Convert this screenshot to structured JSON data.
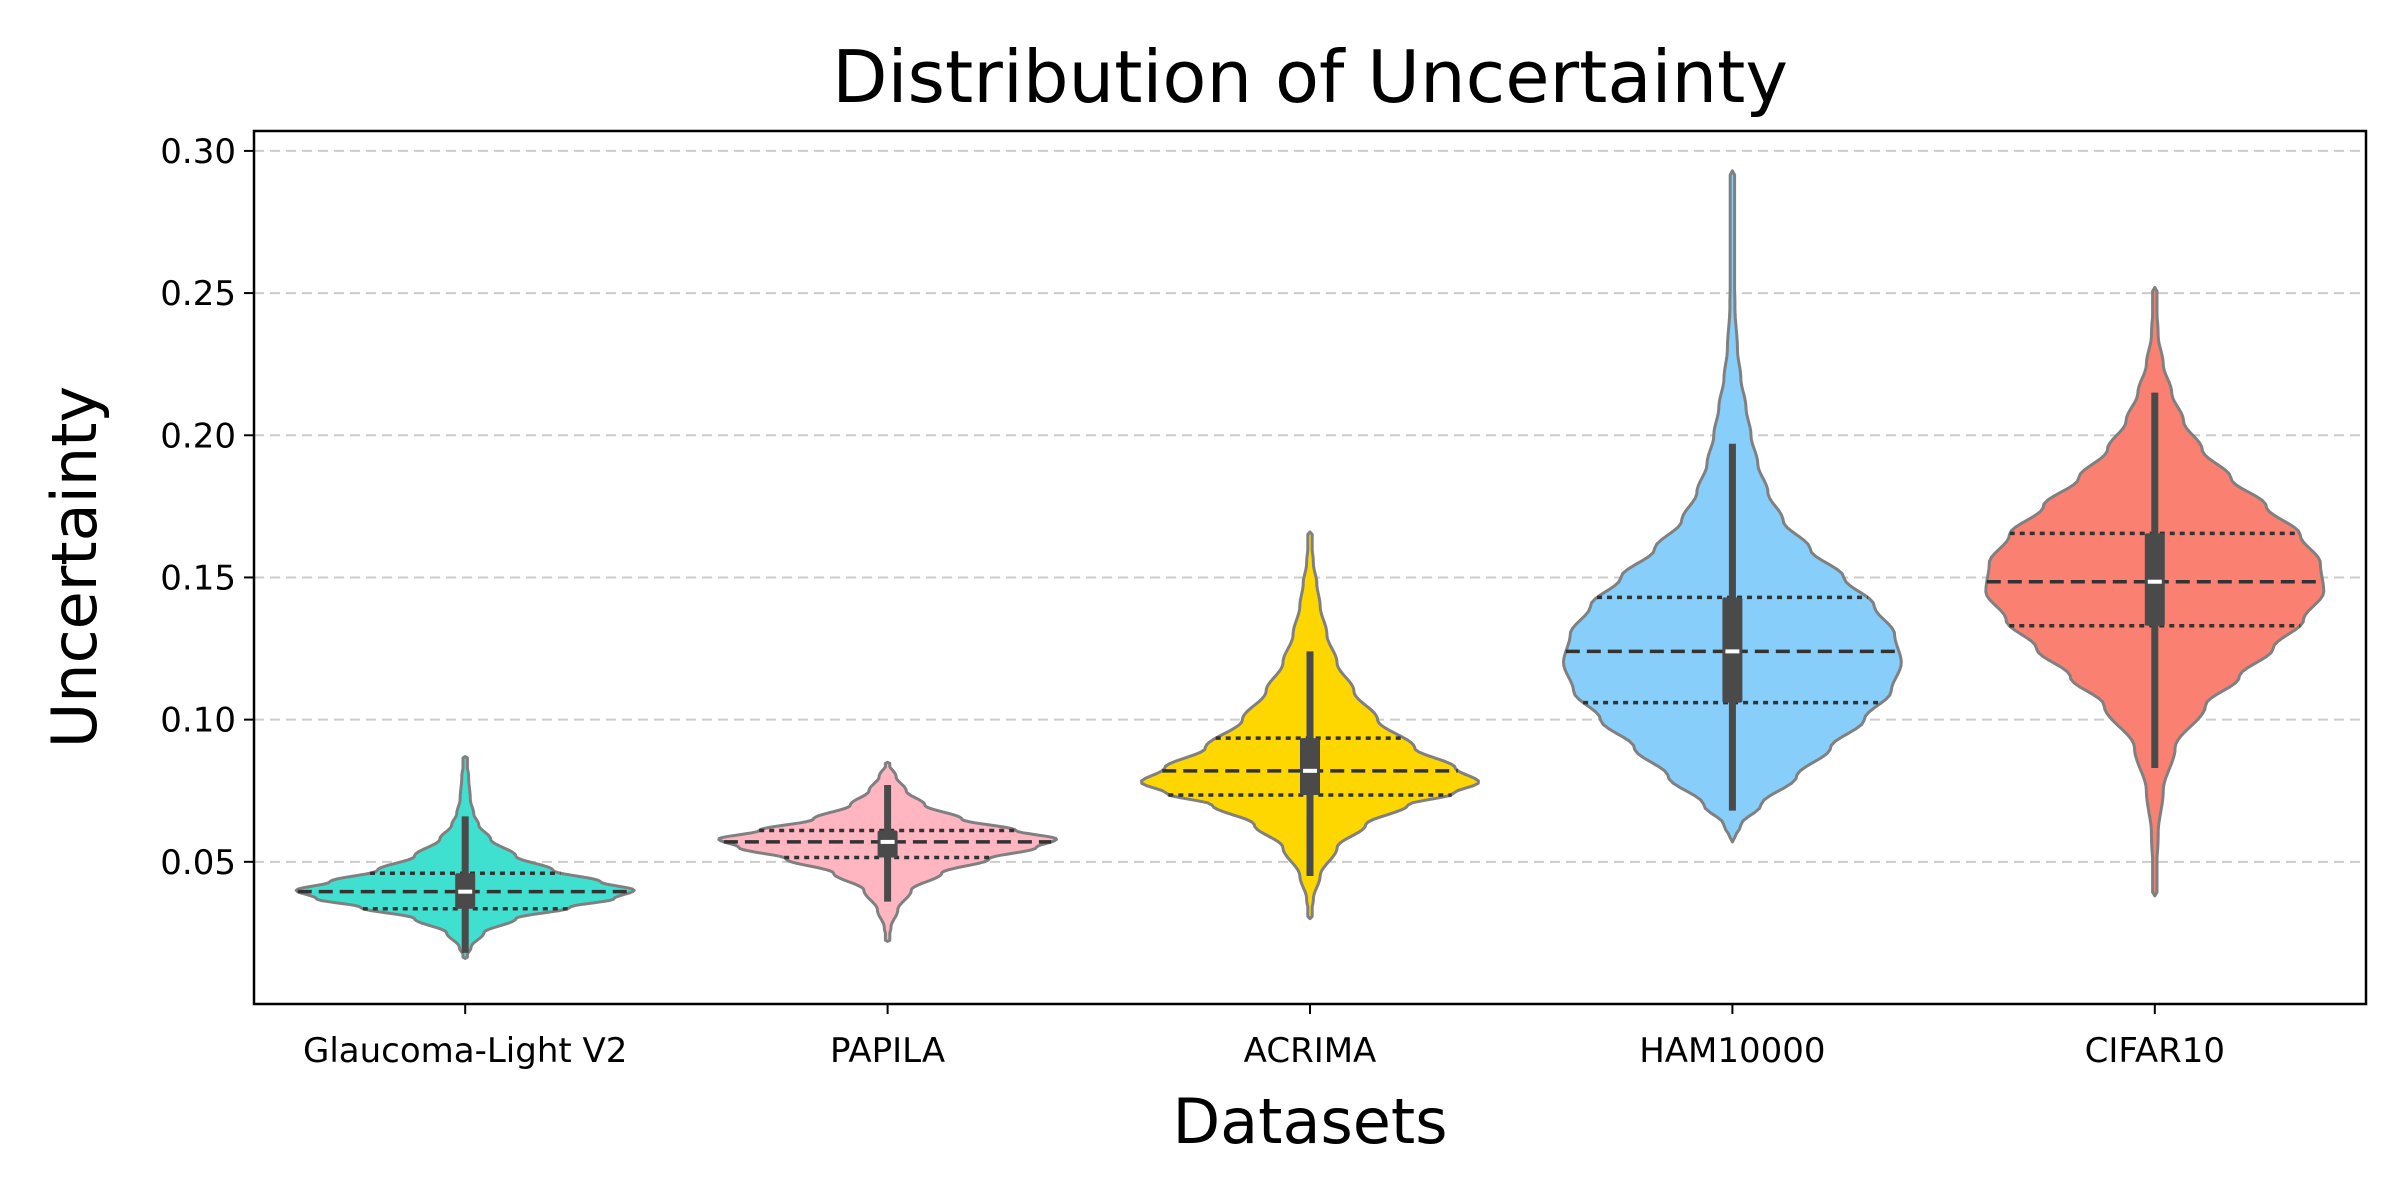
{
  "chart_data": {
    "type": "violin",
    "title": "Distribution of Uncertainty",
    "xlabel": "Datasets",
    "ylabel": "Uncertainty",
    "ylim": [
      0.0,
      0.307
    ],
    "yticks": [
      0.05,
      0.1,
      0.15,
      0.2,
      0.25,
      0.3
    ],
    "ytick_labels": [
      "0.05",
      "0.10",
      "0.15",
      "0.20",
      "0.25",
      "0.30"
    ],
    "grid": "y-dashed",
    "inner": "quartile lines (dotted), median line (dashed), box + whisker + median dot",
    "categories": [
      "Glaucoma-Light V2",
      "PAPILA",
      "ACRIMA",
      "HAM10000",
      "CIFAR10"
    ],
    "series": [
      {
        "name": "Glaucoma-Light V2",
        "color": "#40E0D0",
        "min": 0.016,
        "max": 0.087,
        "q1": 0.0335,
        "median": 0.0395,
        "q3": 0.046,
        "whisker_low": 0.018,
        "whisker_high": 0.066,
        "profile": [
          [
            0.016,
            0.0
          ],
          [
            0.02,
            0.035
          ],
          [
            0.025,
            0.11
          ],
          [
            0.03,
            0.3
          ],
          [
            0.034,
            0.62
          ],
          [
            0.037,
            0.88
          ],
          [
            0.04,
            1.0
          ],
          [
            0.043,
            0.8
          ],
          [
            0.047,
            0.52
          ],
          [
            0.052,
            0.3
          ],
          [
            0.058,
            0.15
          ],
          [
            0.063,
            0.08
          ],
          [
            0.067,
            0.05
          ],
          [
            0.072,
            0.03
          ],
          [
            0.08,
            0.02
          ],
          [
            0.087,
            0.0
          ]
        ]
      },
      {
        "name": "PAPILA",
        "color": "#FFB6C1",
        "min": 0.022,
        "max": 0.085,
        "q1": 0.0515,
        "median": 0.057,
        "q3": 0.061,
        "whisker_low": 0.036,
        "whisker_high": 0.077,
        "profile": [
          [
            0.022,
            0.0
          ],
          [
            0.027,
            0.02
          ],
          [
            0.033,
            0.06
          ],
          [
            0.04,
            0.14
          ],
          [
            0.046,
            0.32
          ],
          [
            0.051,
            0.6
          ],
          [
            0.055,
            0.88
          ],
          [
            0.058,
            1.0
          ],
          [
            0.061,
            0.76
          ],
          [
            0.065,
            0.44
          ],
          [
            0.07,
            0.22
          ],
          [
            0.075,
            0.11
          ],
          [
            0.08,
            0.05
          ],
          [
            0.085,
            0.0
          ]
        ]
      },
      {
        "name": "ACRIMA",
        "color": "#FFD700",
        "min": 0.03,
        "max": 0.166,
        "q1": 0.0735,
        "median": 0.082,
        "q3": 0.0935,
        "whisker_low": 0.045,
        "whisker_high": 0.124,
        "profile": [
          [
            0.03,
            0.0
          ],
          [
            0.037,
            0.02
          ],
          [
            0.045,
            0.06
          ],
          [
            0.055,
            0.16
          ],
          [
            0.063,
            0.33
          ],
          [
            0.07,
            0.58
          ],
          [
            0.074,
            0.85
          ],
          [
            0.078,
            1.0
          ],
          [
            0.083,
            0.86
          ],
          [
            0.09,
            0.62
          ],
          [
            0.1,
            0.4
          ],
          [
            0.11,
            0.26
          ],
          [
            0.12,
            0.16
          ],
          [
            0.13,
            0.1
          ],
          [
            0.14,
            0.06
          ],
          [
            0.148,
            0.04
          ],
          [
            0.155,
            0.02
          ],
          [
            0.166,
            0.0
          ]
        ]
      },
      {
        "name": "HAM10000",
        "color": "#87CEFA",
        "min": 0.057,
        "max": 0.293,
        "q1": 0.106,
        "median": 0.124,
        "q3": 0.143,
        "whisker_low": 0.068,
        "whisker_high": 0.197,
        "profile": [
          [
            0.057,
            0.0
          ],
          [
            0.063,
            0.05
          ],
          [
            0.07,
            0.17
          ],
          [
            0.08,
            0.38
          ],
          [
            0.09,
            0.58
          ],
          [
            0.1,
            0.78
          ],
          [
            0.11,
            0.94
          ],
          [
            0.12,
            1.0
          ],
          [
            0.13,
            0.96
          ],
          [
            0.14,
            0.84
          ],
          [
            0.15,
            0.66
          ],
          [
            0.16,
            0.46
          ],
          [
            0.17,
            0.3
          ],
          [
            0.18,
            0.21
          ],
          [
            0.19,
            0.15
          ],
          [
            0.2,
            0.11
          ],
          [
            0.21,
            0.08
          ],
          [
            0.22,
            0.05
          ],
          [
            0.23,
            0.03
          ],
          [
            0.245,
            0.015
          ],
          [
            0.26,
            0.01
          ],
          [
            0.28,
            0.006
          ],
          [
            0.293,
            0.0
          ]
        ]
      },
      {
        "name": "CIFAR10",
        "color": "#FA8072",
        "min": 0.038,
        "max": 0.252,
        "q1": 0.133,
        "median": 0.1485,
        "q3": 0.1655,
        "whisker_low": 0.083,
        "whisker_high": 0.215,
        "profile": [
          [
            0.038,
            0.0
          ],
          [
            0.06,
            0.02
          ],
          [
            0.075,
            0.05
          ],
          [
            0.09,
            0.12
          ],
          [
            0.105,
            0.3
          ],
          [
            0.115,
            0.5
          ],
          [
            0.125,
            0.7
          ],
          [
            0.135,
            0.88
          ],
          [
            0.145,
            1.0
          ],
          [
            0.155,
            0.98
          ],
          [
            0.165,
            0.86
          ],
          [
            0.175,
            0.66
          ],
          [
            0.185,
            0.45
          ],
          [
            0.195,
            0.28
          ],
          [
            0.205,
            0.17
          ],
          [
            0.215,
            0.1
          ],
          [
            0.225,
            0.05
          ],
          [
            0.235,
            0.02
          ],
          [
            0.252,
            0.0
          ]
        ]
      }
    ]
  }
}
